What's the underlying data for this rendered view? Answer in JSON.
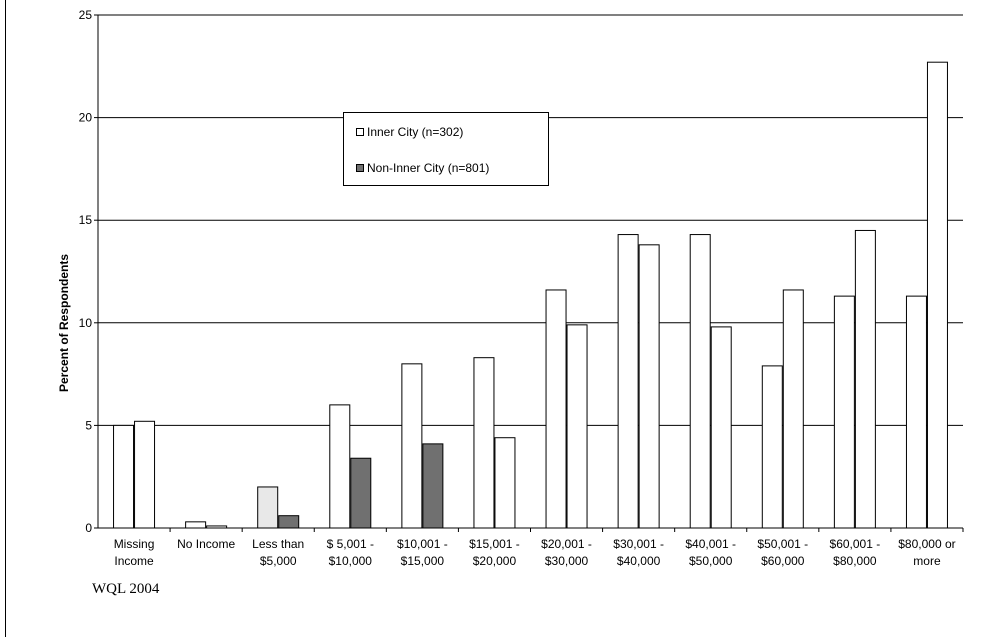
{
  "chart_data": {
    "type": "bar",
    "title": "",
    "xlabel": "",
    "ylabel": "Percent of Respondents",
    "ylim": [
      0,
      25
    ],
    "yticks": [
      0,
      5,
      10,
      15,
      20,
      25
    ],
    "grid": true,
    "legend_position": "top-center",
    "categories": [
      [
        "Missing",
        "Income"
      ],
      [
        "No Income"
      ],
      [
        "Less than",
        "$5,000"
      ],
      [
        "$ 5,001 -",
        "$10,000"
      ],
      [
        "$10,001 -",
        "$15,000"
      ],
      [
        "$15,001 -",
        "$20,000"
      ],
      [
        "$20,001 -",
        "$30,000"
      ],
      [
        "$30,001 -",
        "$40,000"
      ],
      [
        "$40,001 -",
        "$50,000"
      ],
      [
        "$50,001 -",
        "$60,000"
      ],
      [
        "$60,001 -",
        "$80,000"
      ],
      [
        "$80,000 or",
        "more"
      ]
    ],
    "series": [
      {
        "name": "Inner City (n=302)",
        "values": [
          5.0,
          0.3,
          2.0,
          6.0,
          8.0,
          8.3,
          11.6,
          14.3,
          14.3,
          7.9,
          11.3,
          11.3
        ],
        "colors": [
          "#ffffff",
          "#ffffff",
          "#e8e8e8",
          "#ffffff",
          "#ffffff",
          "#ffffff",
          "#ffffff",
          "#ffffff",
          "#ffffff",
          "#ffffff",
          "#ffffff",
          "#ffffff"
        ]
      },
      {
        "name": "Non-Inner City (n=801)",
        "values": [
          5.2,
          0.1,
          0.6,
          3.4,
          4.1,
          4.4,
          9.9,
          13.8,
          9.8,
          11.6,
          14.5,
          22.7
        ],
        "colors": [
          "#ffffff",
          "#ffffff",
          "#707070",
          "#707070",
          "#707070",
          "#ffffff",
          "#ffffff",
          "#ffffff",
          "#ffffff",
          "#ffffff",
          "#ffffff",
          "#ffffff"
        ]
      }
    ],
    "legend_colors": [
      "#ffffff",
      "#707070"
    ]
  },
  "footnote": "WQL  2004"
}
